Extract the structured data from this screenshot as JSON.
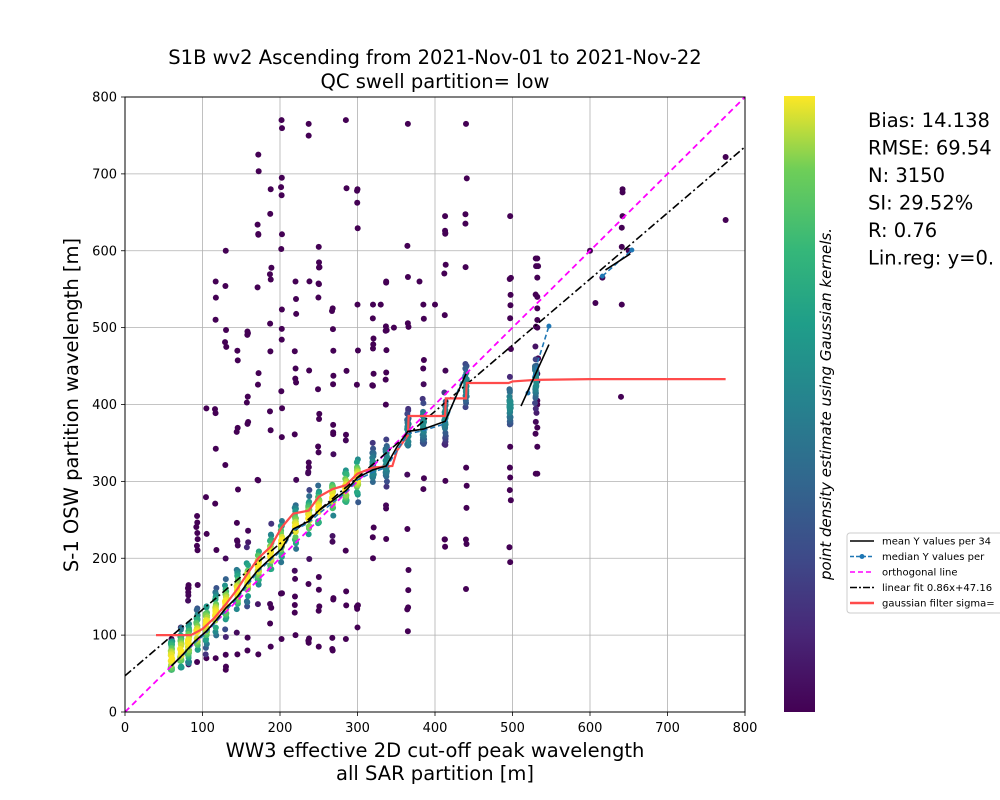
{
  "chart_data": {
    "type": "scatter",
    "title": "S1B wv2 Ascending from 2021-Nov-01 to 2021-Nov-22",
    "subtitle": "QC swell partition= low",
    "xlabel_line1": "WW3 effective 2D cut-off peak wavelength",
    "xlabel_line2": "all SAR partition [m]",
    "ylabel": "S-1 OSW partition wavelength [m]",
    "xlim": [
      0,
      800
    ],
    "ylim": [
      0,
      800
    ],
    "xticks": [
      "0",
      "100",
      "200",
      "300",
      "400",
      "500",
      "600",
      "700",
      "800"
    ],
    "yticks": [
      "0",
      "100",
      "200",
      "300",
      "400",
      "500",
      "600",
      "700",
      "800"
    ],
    "grid": true,
    "colorbar_label": "point density estimate using Gaussian kernels.",
    "colormap": "viridis",
    "stats": [
      "Bias: 14.138",
      "RMSE: 69.54",
      "N: 3150",
      "SI: 29.52%",
      "R: 0.76",
      "Lin.reg: y=0."
    ],
    "legend_placement": "right, outside axes",
    "legend": [
      {
        "label": "mean Y values per 34",
        "style": "solid",
        "color": "#000000"
      },
      {
        "label": "median Y values per",
        "style": "dashed-dot-marker",
        "color": "#1f77b4"
      },
      {
        "label": "orthogonal line",
        "style": "dashed",
        "color": "#ff00ff"
      },
      {
        "label": "linear fit 0.86x+47.16",
        "style": "dashdot",
        "color": "#000000"
      },
      {
        "label": "gaussian filter sigma=",
        "style": "solid-thick",
        "color": "#ff4b4b"
      }
    ],
    "orthogonal_line": [
      [
        0,
        0
      ],
      [
        800,
        800
      ]
    ],
    "linear_fit": {
      "slope": 0.86,
      "intercept": 47.16
    },
    "columns": [
      {
        "x": 60,
        "ymin": 55,
        "ymax": 95,
        "center": 70
      },
      {
        "x": 72,
        "ymin": 58,
        "ymax": 110,
        "center": 80
      },
      {
        "x": 82,
        "ymin": 62,
        "ymax": 165,
        "center": 90
      },
      {
        "x": 93,
        "ymin": 65,
        "ymax": 255,
        "center": 102
      },
      {
        "x": 105,
        "ymin": 70,
        "ymax": 395,
        "center": 115
      },
      {
        "x": 117,
        "ymin": 70,
        "ymax": 560,
        "center": 128
      },
      {
        "x": 130,
        "ymin": 55,
        "ymax": 600,
        "center": 142
      },
      {
        "x": 145,
        "ymin": 75,
        "ymax": 470,
        "center": 158
      },
      {
        "x": 158,
        "ymin": 80,
        "ymax": 495,
        "center": 172
      },
      {
        "x": 172,
        "ymin": 75,
        "ymax": 725,
        "center": 190
      },
      {
        "x": 188,
        "ymin": 85,
        "ymax": 680,
        "center": 205
      },
      {
        "x": 202,
        "ymin": 95,
        "ymax": 770,
        "center": 222
      },
      {
        "x": 220,
        "ymin": 100,
        "ymax": 560,
        "center": 240
      },
      {
        "x": 237,
        "ymin": 90,
        "ymax": 765,
        "center": 252
      },
      {
        "x": 250,
        "ymin": 85,
        "ymax": 605,
        "center": 265
      },
      {
        "x": 268,
        "ymin": 80,
        "ymax": 525,
        "center": 280
      },
      {
        "x": 285,
        "ymin": 95,
        "ymax": 770,
        "center": 292
      },
      {
        "x": 300,
        "ymin": 110,
        "ymax": 680,
        "center": 305
      },
      {
        "x": 320,
        "ymin": 200,
        "ymax": 530,
        "center": 318
      },
      {
        "x": 337,
        "ymin": 225,
        "ymax": 560,
        "center": 325
      },
      {
        "x": 365,
        "ymin": 105,
        "ymax": 765,
        "center": 360
      },
      {
        "x": 385,
        "ymin": 290,
        "ymax": 530,
        "center": 375
      },
      {
        "x": 413,
        "ymin": 215,
        "ymax": 645,
        "center": 385
      },
      {
        "x": 440,
        "ymin": 160,
        "ymax": 765,
        "center": 425
      },
      {
        "x": 497,
        "ymin": 195,
        "ymax": 645,
        "center": 400
      },
      {
        "x": 530,
        "ymin": 310,
        "ymax": 590,
        "center": 430
      }
    ],
    "outliers": [
      [
        532,
        525
      ],
      [
        532,
        565
      ],
      [
        533,
        580
      ],
      [
        532,
        590
      ],
      [
        532,
        500
      ],
      [
        533,
        460
      ],
      [
        532,
        430
      ],
      [
        532,
        405
      ],
      [
        532,
        370
      ],
      [
        532,
        345
      ],
      [
        532,
        310
      ],
      [
        532,
        400
      ],
      [
        532,
        440
      ],
      [
        532,
        540
      ],
      [
        532,
        510
      ],
      [
        600,
        600
      ],
      [
        607,
        532
      ],
      [
        616,
        565
      ],
      [
        640,
        410
      ],
      [
        641,
        530
      ],
      [
        641,
        605
      ],
      [
        641,
        630
      ],
      [
        642,
        645
      ],
      [
        642,
        676
      ],
      [
        642,
        680
      ],
      [
        650,
        600
      ],
      [
        775,
        722
      ],
      [
        775,
        640
      ],
      [
        380,
        560
      ],
      [
        400,
        530
      ],
      [
        330,
        530
      ],
      [
        347,
        500
      ],
      [
        300,
        530
      ],
      [
        497,
        305
      ],
      [
        497,
        345
      ]
    ],
    "mean_line": [
      [
        60,
        60
      ],
      [
        75,
        75
      ],
      [
        90,
        92
      ],
      [
        105,
        105
      ],
      [
        118,
        120
      ],
      [
        130,
        135
      ],
      [
        145,
        150
      ],
      [
        158,
        168
      ],
      [
        172,
        185
      ],
      [
        188,
        200
      ],
      [
        202,
        212
      ],
      [
        217,
        238
      ],
      [
        237,
        248
      ],
      [
        250,
        262
      ],
      [
        268,
        275
      ],
      [
        285,
        288
      ],
      [
        300,
        305
      ],
      [
        320,
        315
      ],
      [
        337,
        320
      ],
      [
        351,
        345
      ],
      [
        365,
        365
      ],
      [
        385,
        368
      ],
      [
        413,
        378
      ],
      [
        440,
        440
      ]
    ],
    "mean_line_2": [
      [
        511,
        398
      ],
      [
        547,
        478
      ]
    ],
    "mean_line_3": [
      [
        620,
        575
      ],
      [
        652,
        596
      ]
    ],
    "median_line": [
      [
        60,
        60
      ],
      [
        75,
        74
      ],
      [
        90,
        90
      ],
      [
        105,
        103
      ],
      [
        118,
        118
      ],
      [
        130,
        132
      ],
      [
        145,
        148
      ],
      [
        158,
        165
      ],
      [
        172,
        183
      ],
      [
        188,
        198
      ],
      [
        202,
        210
      ],
      [
        217,
        236
      ],
      [
        237,
        246
      ],
      [
        250,
        258
      ],
      [
        268,
        272
      ],
      [
        285,
        286
      ],
      [
        300,
        302
      ],
      [
        320,
        312
      ],
      [
        337,
        318
      ],
      [
        351,
        340
      ],
      [
        365,
        362
      ],
      [
        385,
        366
      ],
      [
        413,
        375
      ],
      [
        440,
        445
      ]
    ],
    "median_line_2": [
      [
        520,
        415
      ],
      [
        547,
        502
      ]
    ],
    "median_line_3": [
      [
        616,
        567
      ],
      [
        654,
        601
      ]
    ],
    "gaussian_line": [
      [
        40,
        100
      ],
      [
        85,
        100
      ],
      [
        100,
        108
      ],
      [
        115,
        122
      ],
      [
        130,
        140
      ],
      [
        145,
        160
      ],
      [
        158,
        180
      ],
      [
        172,
        200
      ],
      [
        188,
        215
      ],
      [
        202,
        240
      ],
      [
        217,
        258
      ],
      [
        237,
        262
      ],
      [
        250,
        280
      ],
      [
        268,
        290
      ],
      [
        285,
        295
      ],
      [
        300,
        310
      ],
      [
        320,
        318
      ],
      [
        345,
        320
      ],
      [
        351,
        340
      ],
      [
        365,
        360
      ],
      [
        366,
        385
      ],
      [
        413,
        385
      ],
      [
        414,
        408
      ],
      [
        440,
        408
      ],
      [
        441,
        428
      ],
      [
        495,
        428
      ],
      [
        500,
        430
      ],
      [
        530,
        432
      ],
      [
        600,
        433
      ],
      [
        700,
        433
      ],
      [
        775,
        433
      ]
    ]
  }
}
